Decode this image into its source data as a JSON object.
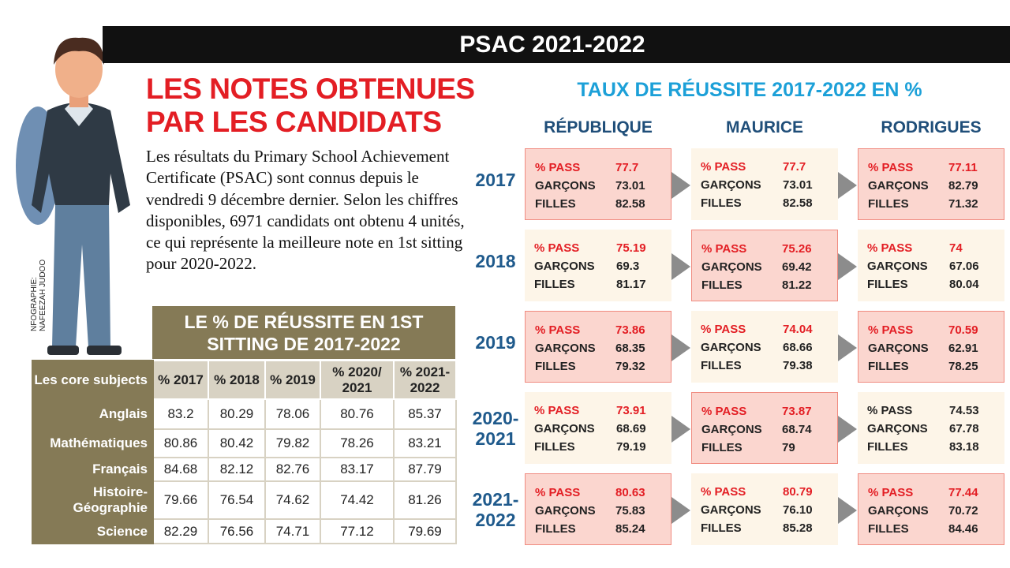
{
  "banner": "PSAC 2021-2022",
  "headline": [
    "LES NOTES OBTENUES",
    "PAR LES CANDIDATS"
  ],
  "paragraph": "Les résultats du Primary School Achievement Certificate (PSAC) sont connus depuis le vendredi 9 décembre dernier. Selon les chiffres disponibles, 6971 candidats ont obtenu 4 unités, ce qui représente la meilleure note en 1st sitting pour 2020-2022.",
  "credit": [
    "NFOGRAPHIE:",
    "NAFEEZAH JUDOO"
  ],
  "table": {
    "title": "LE % DE RÉUSSITE EN 1ST SITTING DE 2017-2022",
    "headers": [
      "Les core subjects",
      "% 2017",
      "% 2018",
      "% 2019",
      "% 2020/ 2021",
      "% 2021- 2022"
    ],
    "rows": [
      [
        "Anglais",
        "83.2",
        "80.29",
        "78.06",
        "80.76",
        "85.37"
      ],
      [
        "Mathématiques",
        "80.86",
        "80.42",
        "79.82",
        "78.26",
        "83.21"
      ],
      [
        "Français",
        "84.68",
        "82.12",
        "82.76",
        "83.17",
        "87.79"
      ],
      [
        "Histoire-Géographie",
        "79.66",
        "76.54",
        "74.62",
        "74.42",
        "81.26"
      ],
      [
        "Science",
        "82.29",
        "76.56",
        "74.71",
        "77.12",
        "79.69"
      ]
    ]
  },
  "right": {
    "title": "TAUX DE RÉUSSITE 2017-2022 EN %",
    "columns": [
      "RÉPUBLIQUE",
      "MAURICE",
      "RODRIGUES"
    ],
    "labels": {
      "pass": "% PASS",
      "boys": "GARÇONS",
      "girls": "FILLES"
    },
    "colors": {
      "pass": "#e31e24",
      "highlight": "#fbd6cf",
      "plain": "#fdf5e8",
      "year": "#1f5a8c",
      "title": "#1ca0d8"
    },
    "rows": [
      {
        "year": "2017",
        "cells": [
          {
            "pass": "77.7",
            "boys": "73.01",
            "girls": "82.58",
            "highlight": true
          },
          {
            "pass": "77.7",
            "boys": "73.01",
            "girls": "82.58",
            "highlight": false
          },
          {
            "pass": "77.11",
            "boys": "82.79",
            "girls": "71.32",
            "highlight": true
          }
        ]
      },
      {
        "year": "2018",
        "cells": [
          {
            "pass": "75.19",
            "boys": "69.3",
            "girls": "81.17",
            "highlight": false
          },
          {
            "pass": "75.26",
            "boys": "69.42",
            "girls": "81.22",
            "highlight": true
          },
          {
            "pass": "74",
            "boys": "67.06",
            "girls": "80.04",
            "highlight": false
          }
        ]
      },
      {
        "year": "2019",
        "cells": [
          {
            "pass": "73.86",
            "boys": "68.35",
            "girls": "79.32",
            "highlight": true
          },
          {
            "pass": "74.04",
            "boys": "68.66",
            "girls": "79.38",
            "highlight": false
          },
          {
            "pass": "70.59",
            "boys": "62.91",
            "girls": "78.25",
            "highlight": true
          }
        ]
      },
      {
        "year": "2020-2021",
        "cells": [
          {
            "pass": "73.91",
            "boys": "68.69",
            "girls": "79.19",
            "highlight": false
          },
          {
            "pass": "73.87",
            "boys": "68.74",
            "girls": "79",
            "highlight": true
          },
          {
            "pass": "74.53",
            "boys": "67.78",
            "girls": "83.18",
            "highlight": false,
            "pass_plain": true
          }
        ]
      },
      {
        "year": "2021-2022",
        "cells": [
          {
            "pass": "80.63",
            "boys": "75.83",
            "girls": "85.24",
            "highlight": true
          },
          {
            "pass": "80.79",
            "boys": "76.10",
            "girls": "85.28",
            "highlight": false
          },
          {
            "pass": "77.44",
            "boys": "70.72",
            "girls": "84.46",
            "highlight": true
          }
        ]
      }
    ]
  }
}
